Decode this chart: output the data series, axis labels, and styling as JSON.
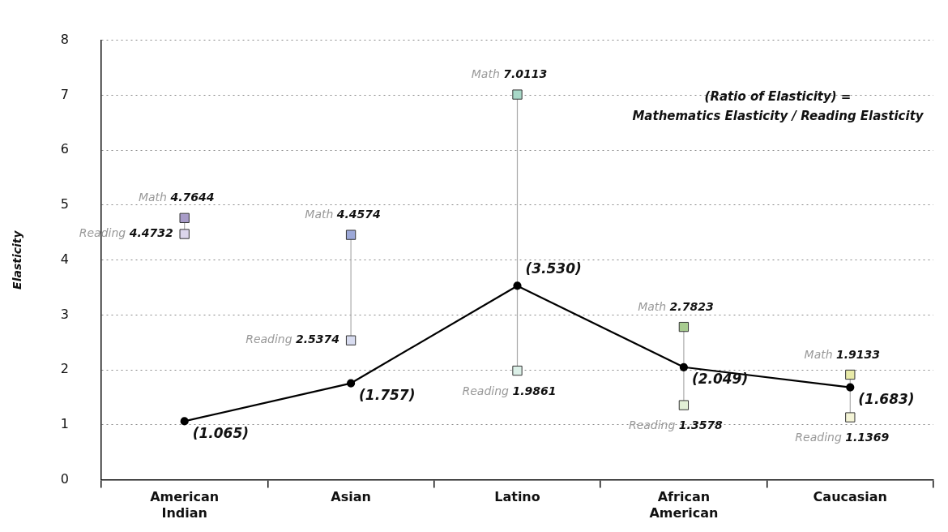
{
  "chart_data": {
    "type": "scatter",
    "ylabel": "Elasticity",
    "categories": [
      "American Indian",
      "Asian",
      "Latino",
      "African American",
      "Caucasian"
    ],
    "ylim": [
      0,
      8
    ],
    "yticks": [
      0,
      1,
      2,
      3,
      4,
      5,
      6,
      7,
      8
    ],
    "grid": "y",
    "legend": false,
    "marker": "square",
    "series": [
      {
        "name": "Math",
        "colors": [
          "#a89cc8",
          "#9ca8d8",
          "#a8d8c8",
          "#a8cc90",
          "#e8eaa8"
        ],
        "values": [
          4.7644,
          4.4574,
          7.0113,
          2.7823,
          1.9133
        ],
        "value_labels": [
          "4.7644",
          "4.4574",
          "7.0113",
          "2.7823",
          "1.9133"
        ]
      },
      {
        "name": "Reading",
        "colors": [
          "#dcd6ec",
          "#d8dcf0",
          "#dcf0e8",
          "#e2efd6",
          "#f4f4d6"
        ],
        "values": [
          4.4732,
          2.5374,
          1.9861,
          1.3578,
          1.1369
        ],
        "value_labels": [
          "4.4732",
          "2.5374",
          "1.9861",
          "1.3578",
          "1.1369"
        ]
      },
      {
        "type": "line",
        "color": "#000000",
        "marker": "circle",
        "values": [
          1.065,
          1.757,
          3.53,
          2.049,
          1.683
        ],
        "value_labels": [
          "(1.065)",
          "(1.757)",
          "(3.530)",
          "(2.049)",
          "(1.683)"
        ]
      }
    ],
    "annotations": [
      "(Ratio of Elasticity) =\nMathematics Elasticity / Reading Elasticity"
    ]
  }
}
